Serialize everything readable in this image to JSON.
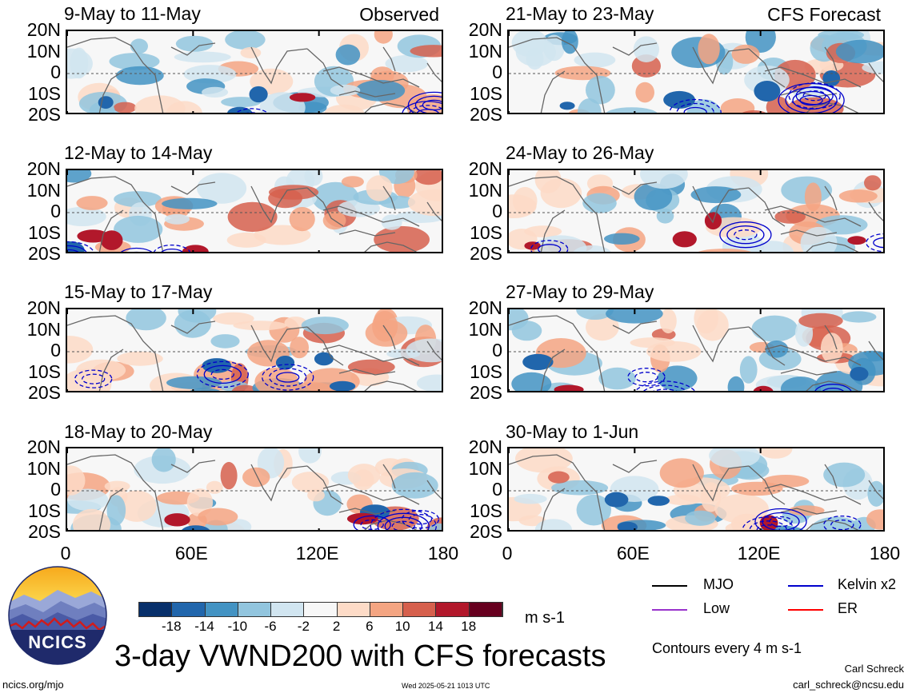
{
  "columns": [
    {
      "corner_label": "Observed",
      "x": 82,
      "panels": [
        {
          "title": "9-May to 11-May"
        },
        {
          "title": "12-May to 14-May"
        },
        {
          "title": "15-May to 17-May"
        },
        {
          "title": "18-May to 20-May"
        }
      ]
    },
    {
      "corner_label": "CFS Forecast",
      "x": 634,
      "panels": [
        {
          "title": "21-May to 23-May"
        },
        {
          "title": "24-May to 26-May"
        },
        {
          "title": "27-May to 29-May"
        },
        {
          "title": "30-May to 1-Jun"
        }
      ]
    }
  ],
  "lat_labels": [
    "20N",
    "10N",
    "0",
    "10S",
    "20S"
  ],
  "lon_labels": [
    "0",
    "60E",
    "120E",
    "180"
  ],
  "colorbar": {
    "colors": [
      "#08306b",
      "#2166ac",
      "#4393c3",
      "#92c5de",
      "#d1e5f0",
      "#f7f7f7",
      "#fddbc7",
      "#f4a582",
      "#d6604d",
      "#b2182b",
      "#67001f"
    ],
    "labels": [
      "-18",
      "-14",
      "-10",
      "-6",
      "-2",
      "2",
      "6",
      "10",
      "14",
      "18"
    ],
    "units": "m s-1"
  },
  "legend": [
    {
      "label": "MJO",
      "color": "#000000"
    },
    {
      "label": "Kelvin x2",
      "color": "#0000cc"
    },
    {
      "label": "Low",
      "color": "#9933cc"
    },
    {
      "label": "ER",
      "color": "#ff0000"
    }
  ],
  "contour_note": "Contours every 4 m s-1",
  "main_title": "3-day VWND200 with CFS forecasts",
  "logo_text": "NCICS",
  "footer_left": "ncics.org/mjo",
  "footer_center": "Wed 2025-05-21 1013 UTC",
  "author_name": "Carl Schreck",
  "author_email": "carl_schreck@ncsu.edu"
}
